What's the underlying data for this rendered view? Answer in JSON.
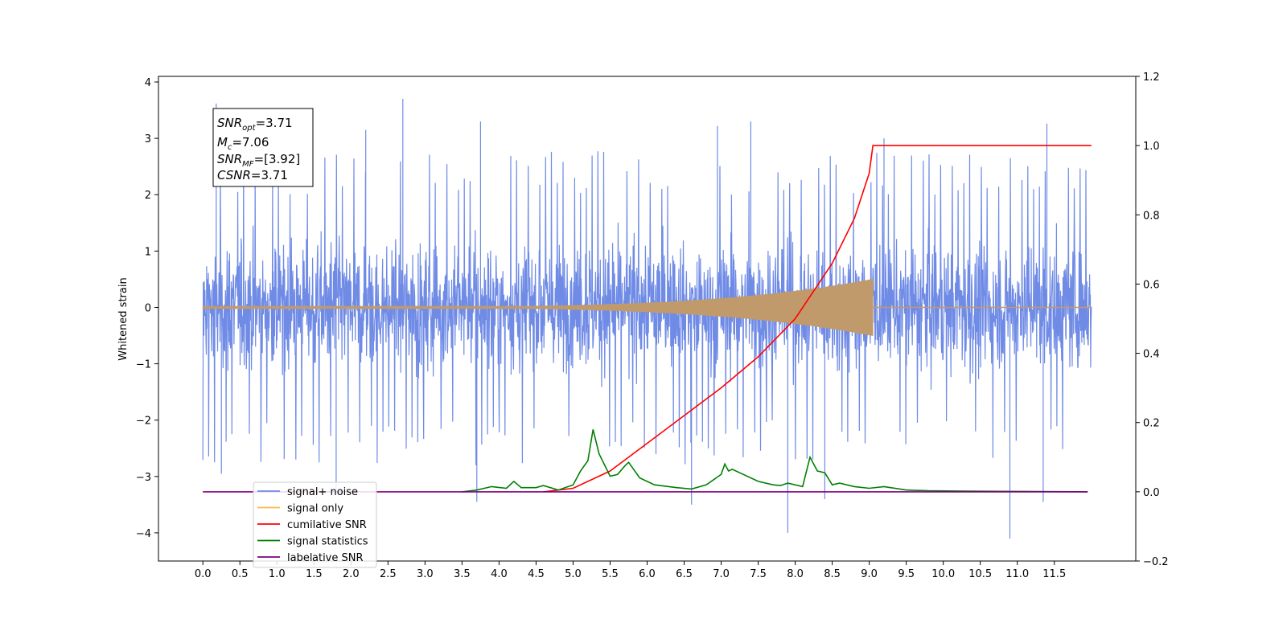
{
  "chart_data": {
    "type": "line",
    "xlabel": "",
    "ylabel": "Whitened strain",
    "x_range": [
      -0.6,
      12.6
    ],
    "y_left_range": [
      -4.5,
      4.1
    ],
    "y_right_range": [
      -0.2,
      1.2
    ],
    "x_ticks": [
      "0.0",
      "0.5",
      "1.0",
      "1.5",
      "2.0",
      "2.5",
      "3.0",
      "3.5",
      "4.0",
      "4.5",
      "5.0",
      "5.5",
      "6.0",
      "6.5",
      "7.0",
      "7.5",
      "8.0",
      "8.5",
      "9.0",
      "9.5",
      "10.0",
      "10.5",
      "11.0",
      "11.5"
    ],
    "y_left_ticks": [
      "4",
      "3",
      "2",
      "1",
      "0",
      "−1",
      "−2",
      "−3",
      "−4"
    ],
    "y_right_ticks": [
      "1.2",
      "1.0",
      "0.8",
      "0.6",
      "0.4",
      "0.2",
      "0.0",
      "−0.2"
    ],
    "grid": false,
    "legend_position": "lower-left",
    "annotation": {
      "snr_opt": "3.71",
      "mc": "7.06",
      "snr_mf": "[3.92]",
      "csnr": "3.71"
    },
    "series": [
      {
        "name": "signal+ noise",
        "color": "#6f8be6",
        "axis": "left",
        "x_start": 0.0,
        "x_end": 12.0,
        "amplitude_envelope": 1.3,
        "max_peaks": [
          {
            "x": 0.18,
            "y": 3.62
          },
          {
            "x": 2.7,
            "y": 3.7
          },
          {
            "x": 3.75,
            "y": 3.3
          },
          {
            "x": 6.95,
            "y": 3.22
          },
          {
            "x": 7.4,
            "y": 3.3
          },
          {
            "x": 9.2,
            "y": 3.0
          },
          {
            "x": 11.4,
            "y": 3.26
          },
          {
            "x": 2.2,
            "y": 3.15
          }
        ],
        "min_peaks": [
          {
            "x": 1.8,
            "y": -3.25
          },
          {
            "x": 3.7,
            "y": -3.45
          },
          {
            "x": 6.6,
            "y": -3.5
          },
          {
            "x": 7.9,
            "y": -4.0
          },
          {
            "x": 10.9,
            "y": -4.1
          },
          {
            "x": 11.35,
            "y": -3.45
          },
          {
            "x": 0.25,
            "y": -2.95
          },
          {
            "x": 8.4,
            "y": -3.4
          }
        ]
      },
      {
        "name": "signal only",
        "color": "#c19a6b",
        "axis": "left",
        "chirp_end": 9.05,
        "x_end": 12.0,
        "max_amplitude": 0.5
      },
      {
        "name": "cumilative SNR",
        "color": "#ff0000",
        "axis": "right",
        "points": [
          [
            4.6,
            0.0
          ],
          [
            5.0,
            0.01
          ],
          [
            5.5,
            0.06
          ],
          [
            6.0,
            0.14
          ],
          [
            6.5,
            0.22
          ],
          [
            7.0,
            0.3
          ],
          [
            7.5,
            0.39
          ],
          [
            8.0,
            0.5
          ],
          [
            8.5,
            0.66
          ],
          [
            8.8,
            0.79
          ],
          [
            9.0,
            0.92
          ],
          [
            9.05,
            1.0
          ],
          [
            12.0,
            1.0
          ]
        ]
      },
      {
        "name": "signal statistics",
        "color": "#008000",
        "axis": "right",
        "points": [
          [
            3.5,
            0.0
          ],
          [
            3.7,
            0.005
          ],
          [
            3.9,
            0.015
          ],
          [
            4.1,
            0.01
          ],
          [
            4.2,
            0.03
          ],
          [
            4.3,
            0.012
          ],
          [
            4.5,
            0.012
          ],
          [
            4.6,
            0.018
          ],
          [
            4.8,
            0.005
          ],
          [
            5.0,
            0.02
          ],
          [
            5.1,
            0.06
          ],
          [
            5.2,
            0.09
          ],
          [
            5.27,
            0.18
          ],
          [
            5.35,
            0.11
          ],
          [
            5.5,
            0.045
          ],
          [
            5.6,
            0.05
          ],
          [
            5.7,
            0.075
          ],
          [
            5.75,
            0.085
          ],
          [
            5.9,
            0.04
          ],
          [
            6.1,
            0.02
          ],
          [
            6.4,
            0.012
          ],
          [
            6.6,
            0.008
          ],
          [
            6.8,
            0.02
          ],
          [
            7.0,
            0.05
          ],
          [
            7.05,
            0.08
          ],
          [
            7.1,
            0.06
          ],
          [
            7.15,
            0.065
          ],
          [
            7.3,
            0.05
          ],
          [
            7.5,
            0.03
          ],
          [
            7.7,
            0.02
          ],
          [
            7.8,
            0.018
          ],
          [
            7.9,
            0.025
          ],
          [
            8.1,
            0.015
          ],
          [
            8.2,
            0.1
          ],
          [
            8.3,
            0.06
          ],
          [
            8.4,
            0.055
          ],
          [
            8.5,
            0.02
          ],
          [
            8.6,
            0.025
          ],
          [
            8.8,
            0.015
          ],
          [
            9.0,
            0.01
          ],
          [
            9.2,
            0.015
          ],
          [
            9.5,
            0.005
          ],
          [
            9.8,
            0.003
          ],
          [
            10.3,
            0.002
          ],
          [
            11.0,
            0.001
          ],
          [
            11.95,
            0.0
          ]
        ]
      },
      {
        "name": "label",
        "color": "#800080",
        "axis": "right",
        "points": [
          [
            0.0,
            0.0
          ],
          [
            11.95,
            0.0
          ]
        ]
      }
    ],
    "legend": [
      {
        "label": "signal+ noise",
        "color": "#6f8be6"
      },
      {
        "label": "signal only",
        "color": "#ffb84d"
      },
      {
        "label": "cumilative SNR",
        "color": "#ff0000"
      },
      {
        "label": "signal statistics",
        "color": "#008000"
      },
      {
        "label": "label",
        "color": "#800080",
        "faded_suffix": "ative SNR"
      }
    ]
  }
}
